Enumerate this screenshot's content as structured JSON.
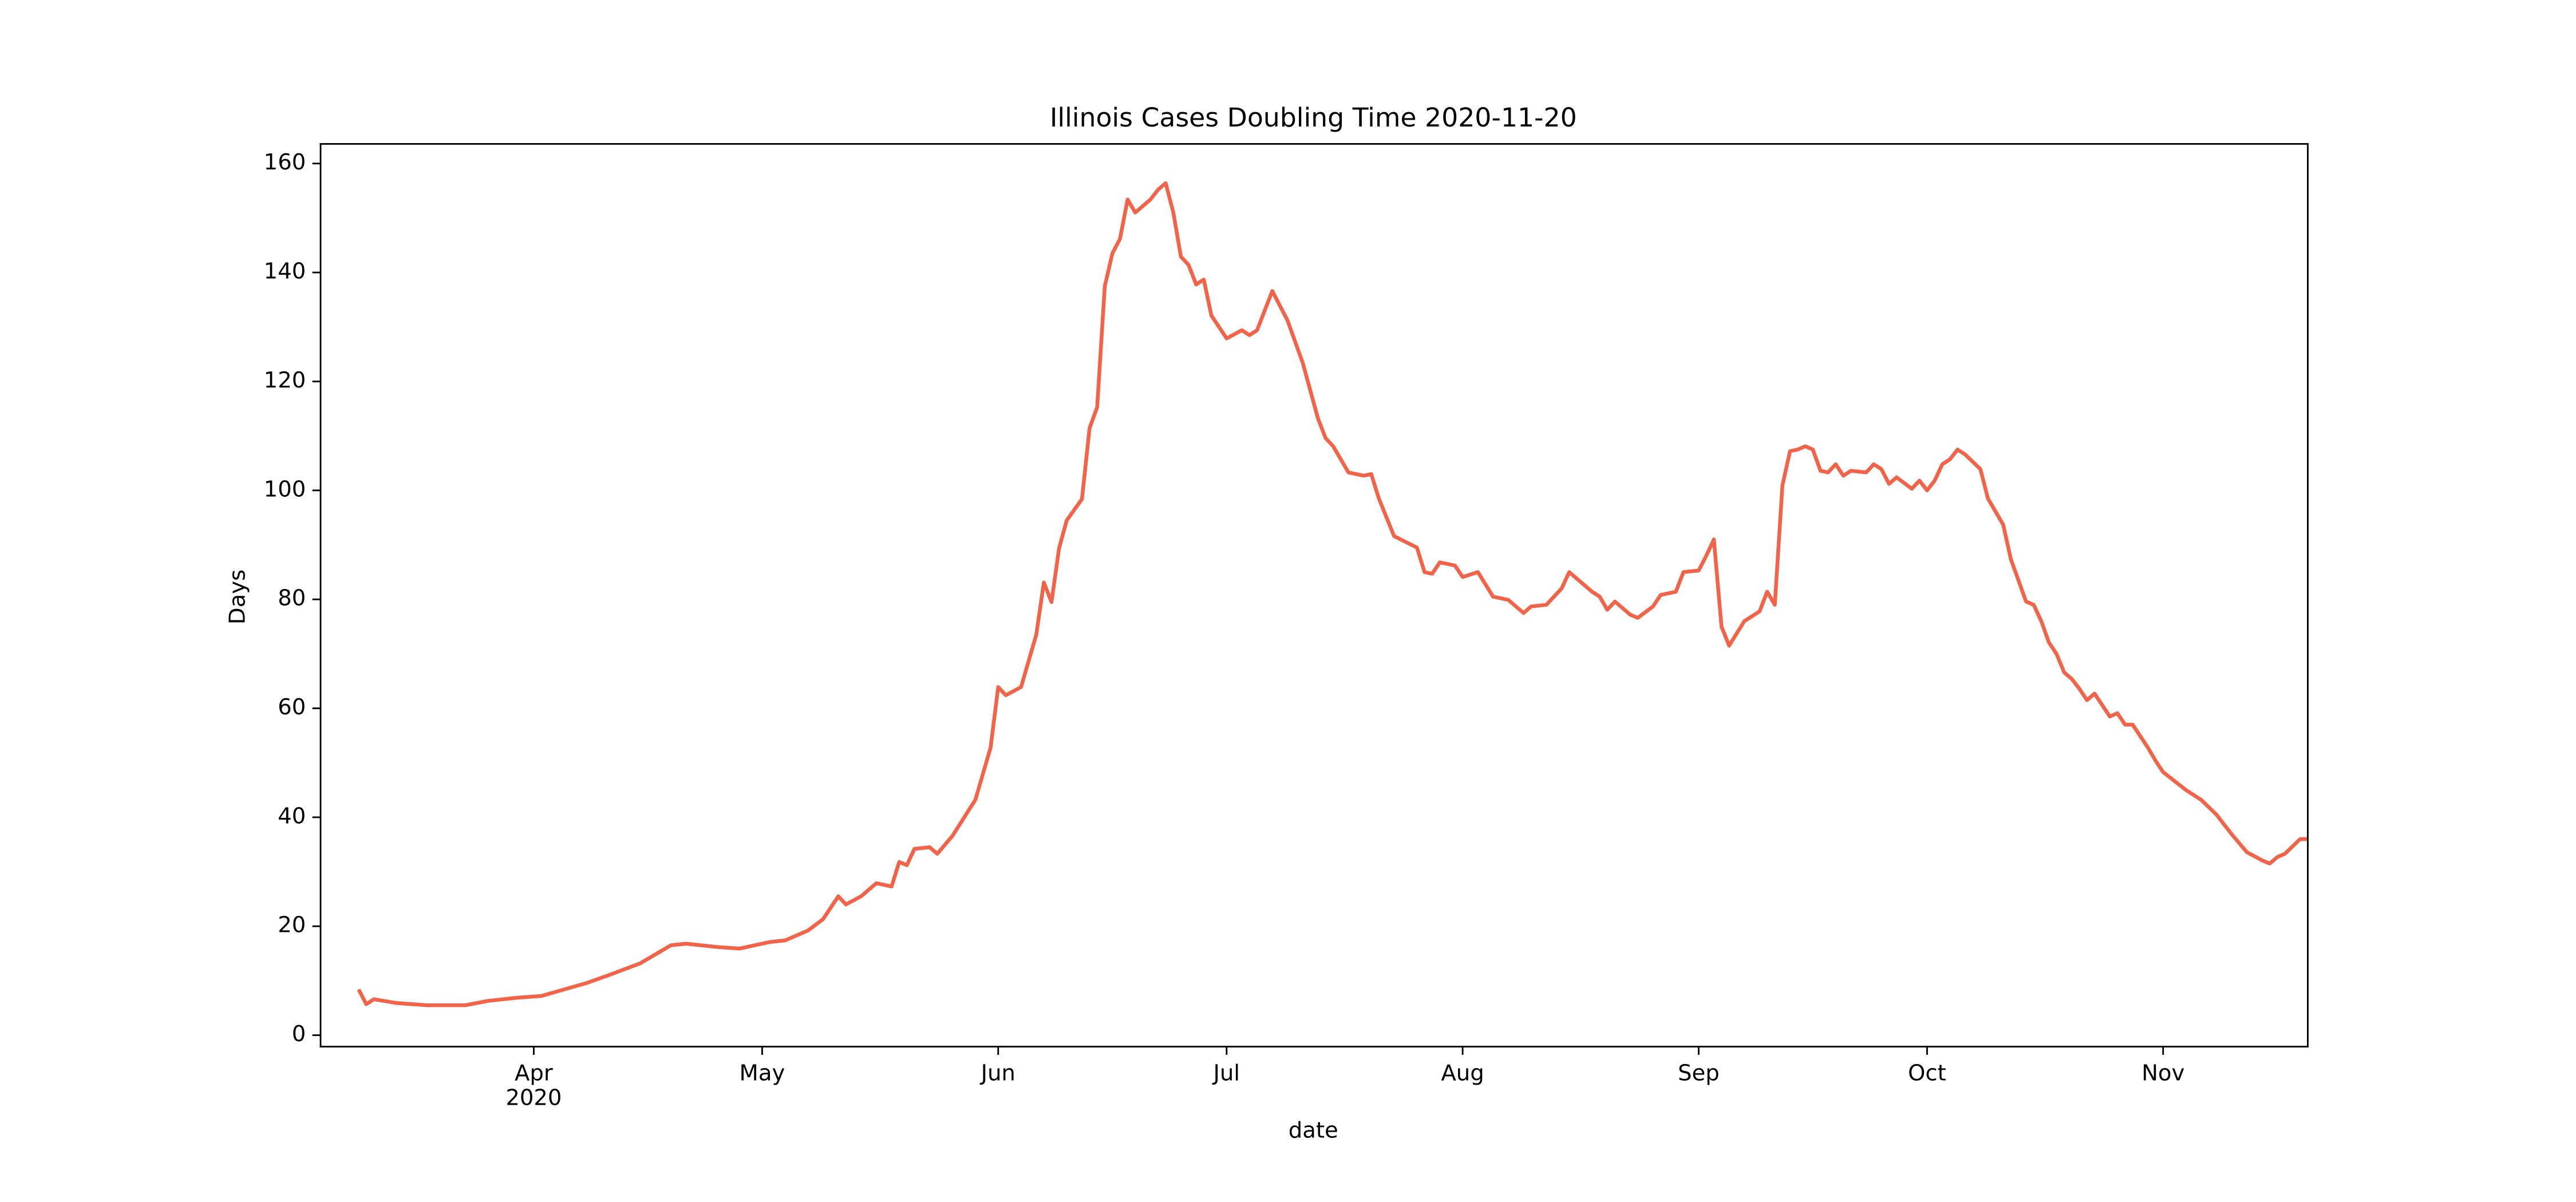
{
  "chart_data": {
    "type": "line",
    "title": "Illinois Cases Doubling Time 2020-11-20",
    "x_label": "date",
    "y_label": "Days",
    "x_year": "2020",
    "xlim": [
      "2020-03-04",
      "2020-11-20"
    ],
    "ylim": [
      -2.1,
      163.6
    ],
    "yticks": [
      0,
      20,
      40,
      60,
      80,
      100,
      120,
      140,
      160
    ],
    "xticks": [
      {
        "value": "2020-04-01",
        "label": "Apr"
      },
      {
        "value": "2020-05-01",
        "label": "May"
      },
      {
        "value": "2020-06-01",
        "label": "Jun"
      },
      {
        "value": "2020-07-01",
        "label": "Jul"
      },
      {
        "value": "2020-08-01",
        "label": "Aug"
      },
      {
        "value": "2020-09-01",
        "label": "Sep"
      },
      {
        "value": "2020-10-01",
        "label": "Oct"
      },
      {
        "value": "2020-11-01",
        "label": "Nov"
      }
    ],
    "grid": false,
    "x": [
      "2020-03-09",
      "2020-03-10",
      "2020-03-11",
      "2020-03-14",
      "2020-03-18",
      "2020-03-23",
      "2020-03-26",
      "2020-03-30",
      "2020-04-02",
      "2020-04-05",
      "2020-04-08",
      "2020-04-11",
      "2020-04-15",
      "2020-04-19",
      "2020-04-21",
      "2020-04-25",
      "2020-04-28",
      "2020-05-02",
      "2020-05-04",
      "2020-05-07",
      "2020-05-09",
      "2020-05-11",
      "2020-05-12",
      "2020-05-14",
      "2020-05-16",
      "2020-05-18",
      "2020-05-19",
      "2020-05-20",
      "2020-05-21",
      "2020-05-23",
      "2020-05-24",
      "2020-05-26",
      "2020-05-29",
      "2020-05-31",
      "2020-06-01",
      "2020-06-02",
      "2020-06-04",
      "2020-06-06",
      "2020-06-07",
      "2020-06-08",
      "2020-06-09",
      "2020-06-10",
      "2020-06-12",
      "2020-06-13",
      "2020-06-14",
      "2020-06-15",
      "2020-06-16",
      "2020-06-17",
      "2020-06-18",
      "2020-06-19",
      "2020-06-21",
      "2020-06-22",
      "2020-06-23",
      "2020-06-24",
      "2020-06-25",
      "2020-06-26",
      "2020-06-27",
      "2020-06-28",
      "2020-06-29",
      "2020-07-01",
      "2020-07-03",
      "2020-07-04",
      "2020-07-05",
      "2020-07-07",
      "2020-07-09",
      "2020-07-11",
      "2020-07-13",
      "2020-07-14",
      "2020-07-15",
      "2020-07-17",
      "2020-07-19",
      "2020-07-20",
      "2020-07-21",
      "2020-07-23",
      "2020-07-26",
      "2020-07-27",
      "2020-07-28",
      "2020-07-29",
      "2020-07-31",
      "2020-08-01",
      "2020-08-03",
      "2020-08-05",
      "2020-08-07",
      "2020-08-09",
      "2020-08-10",
      "2020-08-12",
      "2020-08-14",
      "2020-08-15",
      "2020-08-16",
      "2020-08-18",
      "2020-08-19",
      "2020-08-20",
      "2020-08-21",
      "2020-08-23",
      "2020-08-24",
      "2020-08-26",
      "2020-08-27",
      "2020-08-29",
      "2020-08-30",
      "2020-09-01",
      "2020-09-02",
      "2020-09-03",
      "2020-09-04",
      "2020-09-05",
      "2020-09-07",
      "2020-09-09",
      "2020-09-10",
      "2020-09-11",
      "2020-09-12",
      "2020-09-13",
      "2020-09-14",
      "2020-09-15",
      "2020-09-16",
      "2020-09-17",
      "2020-09-18",
      "2020-09-19",
      "2020-09-20",
      "2020-09-21",
      "2020-09-23",
      "2020-09-24",
      "2020-09-25",
      "2020-09-26",
      "2020-09-27",
      "2020-09-29",
      "2020-09-30",
      "2020-10-01",
      "2020-10-02",
      "2020-10-03",
      "2020-10-04",
      "2020-10-05",
      "2020-10-06",
      "2020-10-08",
      "2020-10-09",
      "2020-10-11",
      "2020-10-12",
      "2020-10-14",
      "2020-10-15",
      "2020-10-16",
      "2020-10-17",
      "2020-10-18",
      "2020-10-19",
      "2020-10-20",
      "2020-10-21",
      "2020-10-22",
      "2020-10-23",
      "2020-10-25",
      "2020-10-26",
      "2020-10-27",
      "2020-10-28",
      "2020-10-30",
      "2020-10-31",
      "2020-11-01",
      "2020-11-04",
      "2020-11-06",
      "2020-11-08",
      "2020-11-10",
      "2020-11-12",
      "2020-11-14",
      "2020-11-15",
      "2020-11-16",
      "2020-11-17",
      "2020-11-19",
      "2020-11-20"
    ],
    "series": [
      {
        "name": "Days",
        "color": "#f26449",
        "values": [
          8.4,
          5.7,
          6.6,
          5.9,
          5.5,
          5.5,
          6.3,
          6.9,
          7.2,
          8.4,
          9.6,
          11.1,
          13.2,
          16.5,
          16.8,
          16.2,
          15.9,
          17.1,
          17.4,
          19.2,
          21.3,
          25.5,
          24,
          25.5,
          27.9,
          27.3,
          31.8,
          31.2,
          34.2,
          34.5,
          33.3,
          36.6,
          43.2,
          52.8,
          63.9,
          62.4,
          63.9,
          73.5,
          83.1,
          79.5,
          89.4,
          94.5,
          98.4,
          111.4,
          115.3,
          137.5,
          143.5,
          146.2,
          153.4,
          151,
          153.4,
          155.2,
          156.4,
          151,
          142.9,
          141.4,
          137.8,
          138.7,
          132.1,
          127.9,
          129.4,
          128.5,
          129.4,
          136.6,
          131.2,
          123.4,
          113.2,
          109.6,
          108.1,
          103.3,
          102.7,
          103,
          98.5,
          91.6,
          89.5,
          85,
          84.7,
          86.8,
          86.2,
          84.1,
          85,
          80.5,
          79.9,
          77.5,
          78.7,
          79,
          82,
          85,
          83.8,
          81.4,
          80.5,
          78.1,
          79.6,
          77.2,
          76.6,
          78.7,
          80.8,
          81.4,
          85,
          85.3,
          88,
          91,
          75,
          71.5,
          76,
          77.8,
          81.4,
          79,
          100.9,
          107.2,
          107.5,
          108.1,
          107.5,
          103.6,
          103.3,
          104.8,
          102.7,
          103.6,
          103.3,
          104.8,
          103.9,
          101.2,
          102.4,
          100.3,
          101.8,
          100,
          101.8,
          104.8,
          105.7,
          107.5,
          106.6,
          103.9,
          98.5,
          93.7,
          87.4,
          79.6,
          79,
          76,
          72.1,
          70,
          66.6,
          65.4,
          63.6,
          61.5,
          62.7,
          58.5,
          59.1,
          57,
          57,
          52.8,
          50.4,
          48.3,
          45,
          43.2,
          40.5,
          36.9,
          33.6,
          32.1,
          31.5,
          32.7,
          33.3,
          36,
          36
        ]
      }
    ]
  }
}
